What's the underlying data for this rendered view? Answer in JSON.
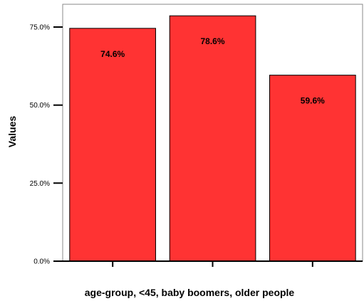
{
  "chart_data": {
    "type": "bar",
    "categories": [
      "<45",
      "baby boomers",
      "older people"
    ],
    "values": [
      74.6,
      78.6,
      59.6
    ],
    "data_labels": [
      "74.6%",
      "78.6%",
      "59.6%"
    ],
    "title": "",
    "xlabel": "age-group, <45, baby boomers, older people",
    "ylabel": "Values",
    "ylim": [
      0,
      80
    ],
    "yticks": [
      0,
      25,
      50,
      75
    ],
    "ytick_labels": [
      "0.0%",
      "25.0%",
      "50.0%",
      "75.0%"
    ],
    "grid": false,
    "legend": "none",
    "bar_color": "#ff3333",
    "edge_color": "#000000"
  }
}
